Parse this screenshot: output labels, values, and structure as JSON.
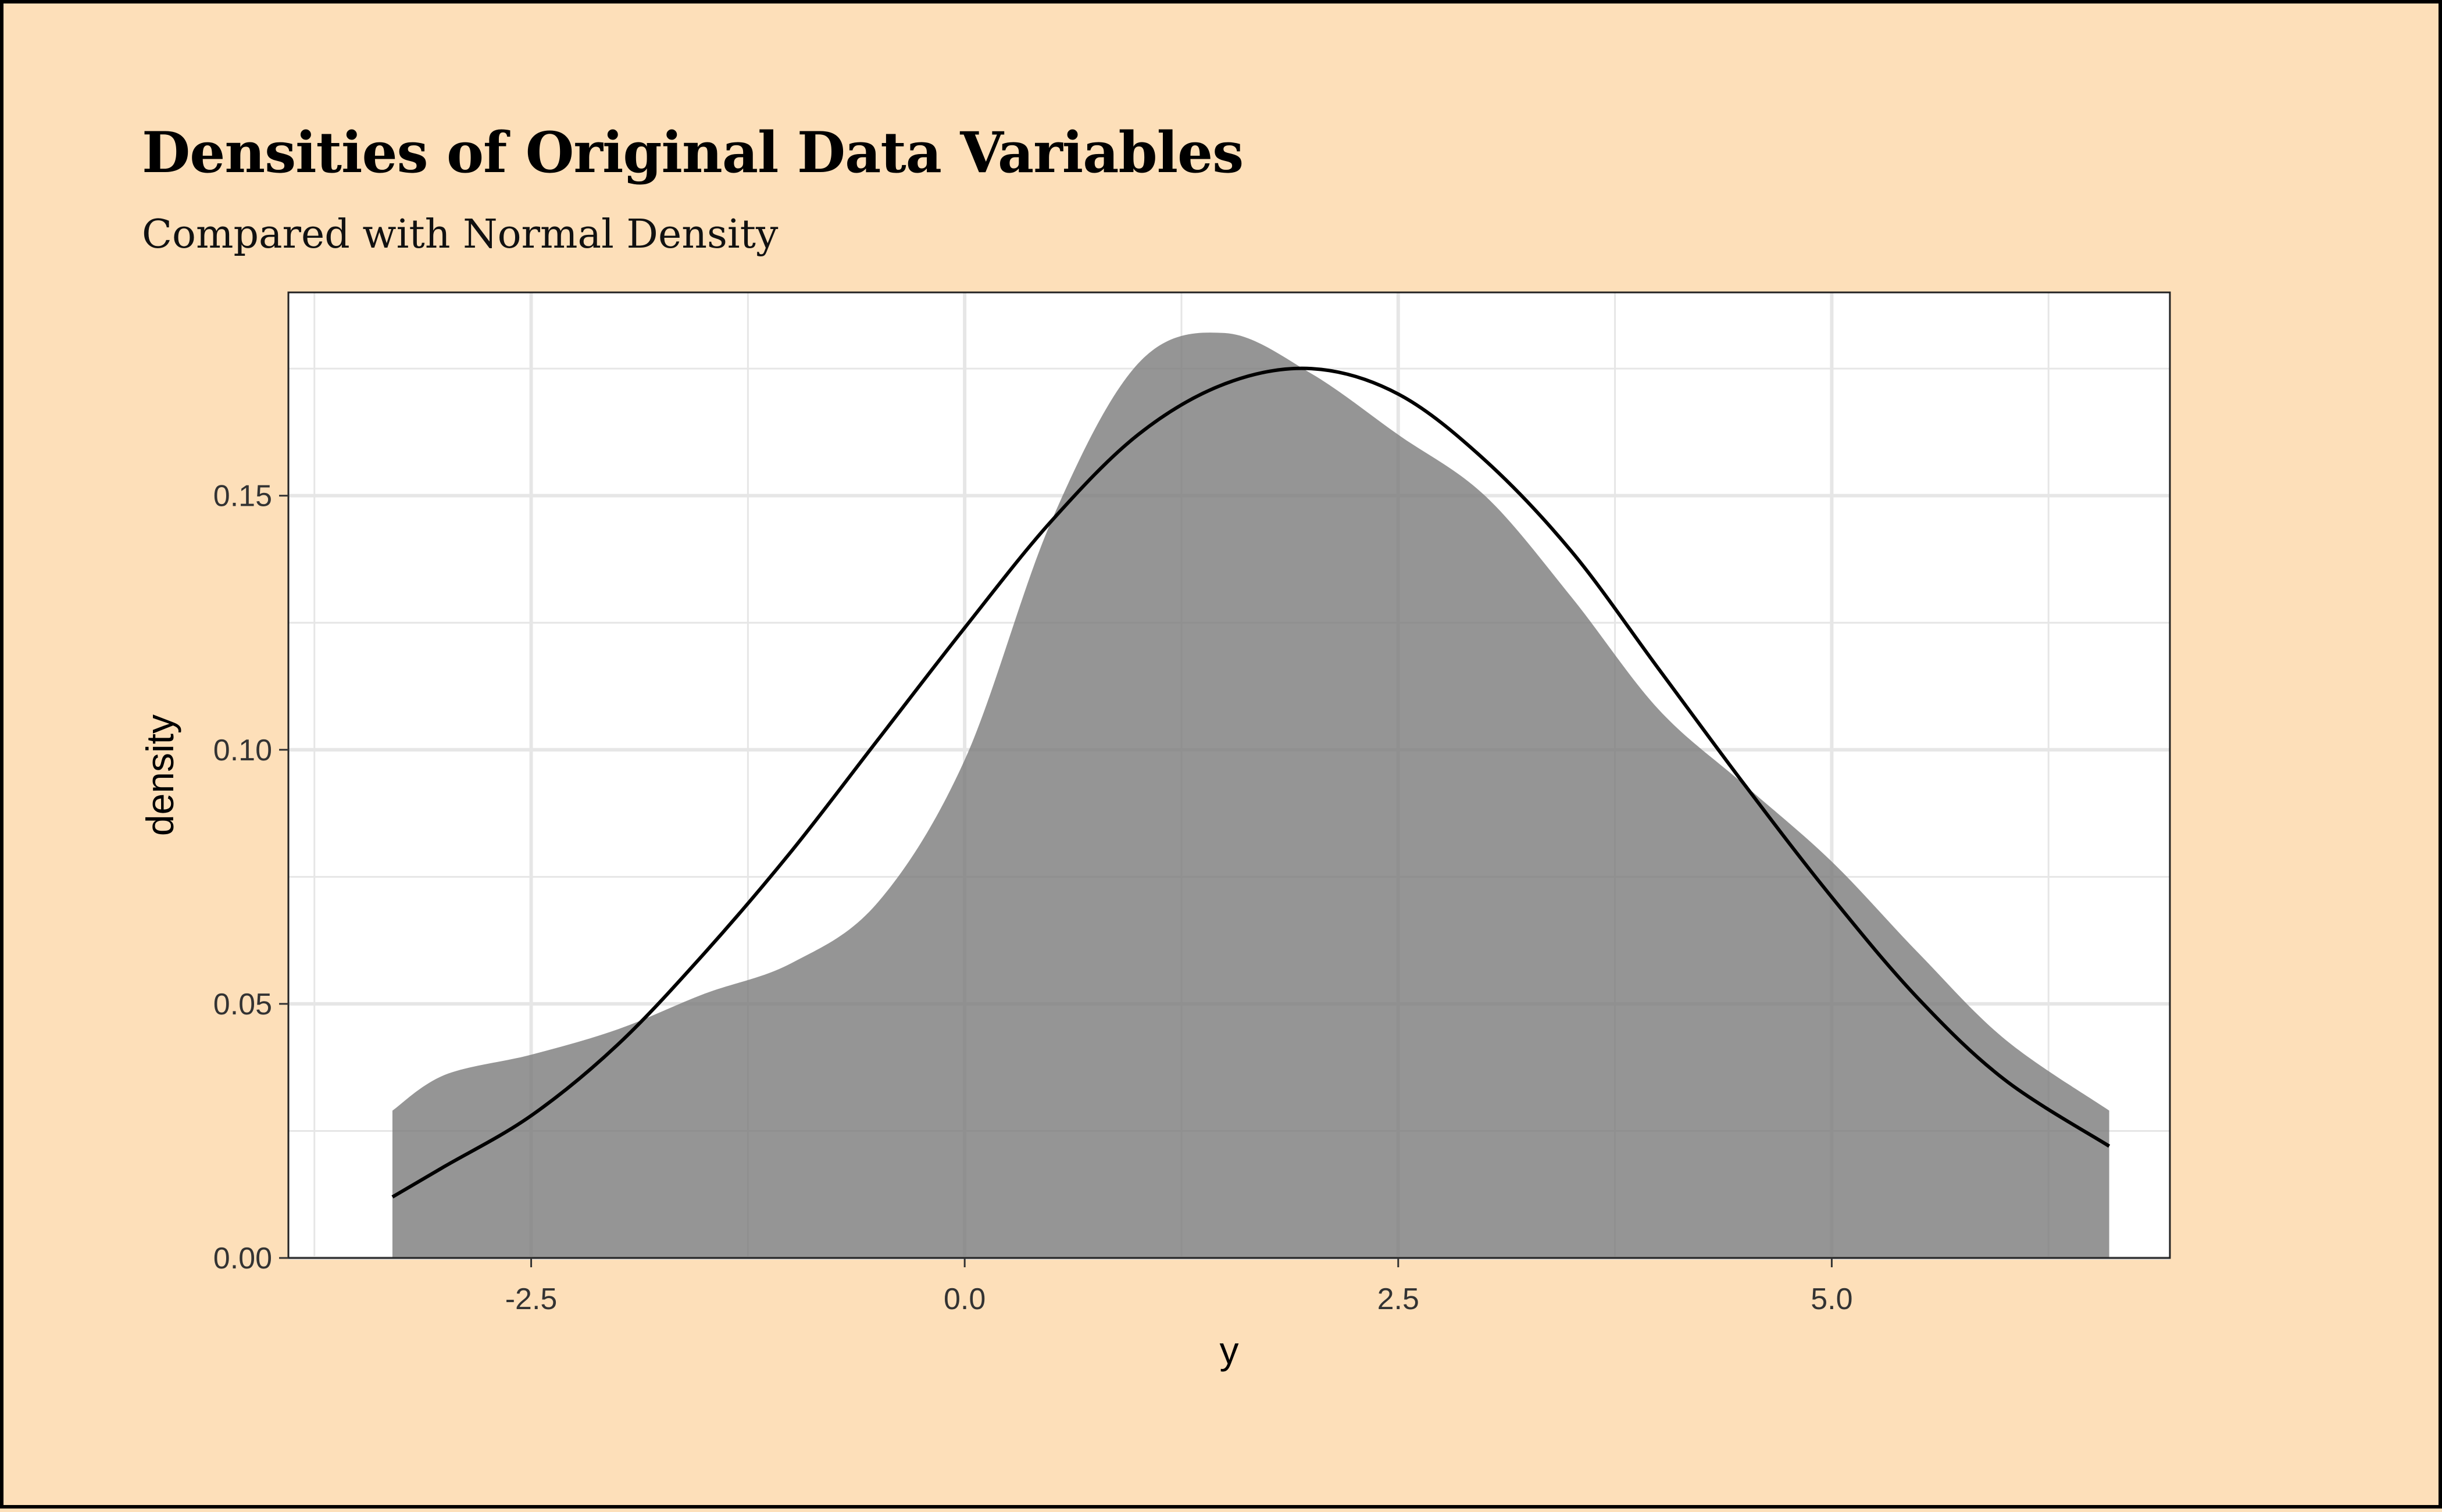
{
  "title": "Densities of Original Data Variables",
  "subtitle": "Compared with Normal Density",
  "colors": {
    "background": "#fddfb9",
    "panel": "#ffffff",
    "grid": "#e6e6e6",
    "density_fill": "#7a7a7a",
    "normal_line": "#000000"
  },
  "chart_data": {
    "type": "area",
    "xlabel": "y",
    "ylabel": "density",
    "xlim": [
      -3.9,
      6.95
    ],
    "ylim": [
      0,
      0.19
    ],
    "grid": true,
    "x_ticks": [
      -2.5,
      0.0,
      2.5,
      5.0
    ],
    "x_tick_labels": [
      "-2.5",
      "0.0",
      "2.5",
      "5.0"
    ],
    "y_ticks": [
      0.0,
      0.05,
      0.1,
      0.15
    ],
    "y_tick_labels": [
      "0.00",
      "0.05",
      "0.10",
      "0.15"
    ],
    "series": [
      {
        "kind": "kernel-density-area",
        "x": [
          -3.3,
          -3.0,
          -2.5,
          -2.0,
          -1.5,
          -1.0,
          -0.5,
          0.0,
          0.5,
          1.0,
          1.5,
          2.0,
          2.5,
          3.0,
          3.5,
          4.0,
          4.5,
          5.0,
          5.5,
          6.0,
          6.6
        ],
        "y": [
          0.029,
          0.036,
          0.04,
          0.045,
          0.052,
          0.058,
          0.07,
          0.098,
          0.145,
          0.176,
          0.182,
          0.174,
          0.162,
          0.15,
          0.13,
          0.108,
          0.093,
          0.078,
          0.06,
          0.043,
          0.029
        ]
      },
      {
        "kind": "normal-density-line",
        "x": [
          -3.3,
          -3.0,
          -2.5,
          -2.0,
          -1.5,
          -1.0,
          -0.5,
          0.0,
          0.5,
          1.0,
          1.5,
          2.0,
          2.5,
          3.0,
          3.5,
          4.0,
          4.5,
          5.0,
          5.5,
          6.0,
          6.6
        ],
        "y": [
          0.012,
          0.018,
          0.028,
          0.042,
          0.06,
          0.08,
          0.102,
          0.124,
          0.145,
          0.162,
          0.172,
          0.175,
          0.17,
          0.157,
          0.139,
          0.116,
          0.093,
          0.071,
          0.051,
          0.035,
          0.022
        ]
      }
    ]
  }
}
